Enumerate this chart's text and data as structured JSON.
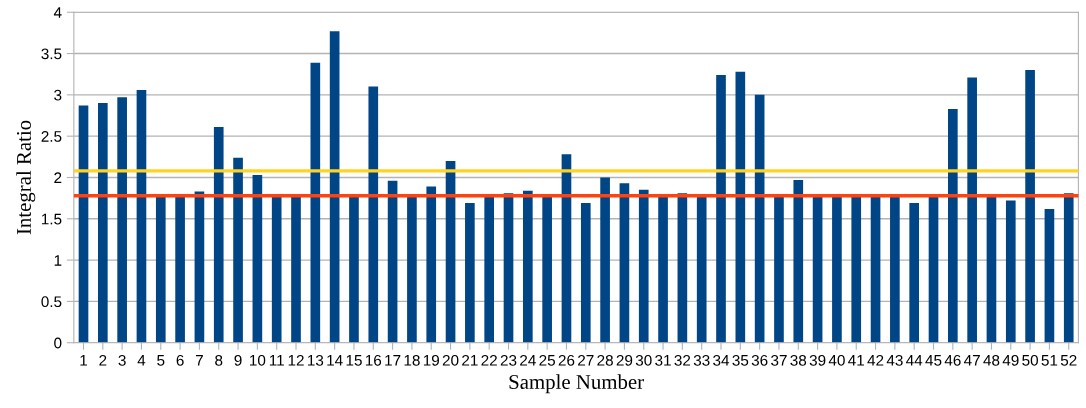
{
  "chart_data": {
    "type": "bar",
    "xlabel": "Sample Number",
    "ylabel": "Integral Ratio",
    "categories": [
      "1",
      "2",
      "3",
      "4",
      "5",
      "6",
      "7",
      "8",
      "9",
      "10",
      "11",
      "12",
      "13",
      "14",
      "15",
      "16",
      "17",
      "18",
      "19",
      "20",
      "21",
      "22",
      "23",
      "24",
      "25",
      "26",
      "27",
      "28",
      "29",
      "30",
      "31",
      "32",
      "33",
      "34",
      "35",
      "36",
      "37",
      "38",
      "39",
      "40",
      "41",
      "42",
      "43",
      "44",
      "45",
      "46",
      "47",
      "48",
      "49",
      "50",
      "51",
      "52"
    ],
    "values": [
      2.87,
      2.9,
      2.97,
      3.06,
      1.77,
      1.77,
      1.83,
      2.61,
      2.24,
      2.03,
      1.77,
      1.77,
      3.39,
      3.77,
      1.77,
      3.1,
      1.96,
      1.77,
      1.89,
      2.2,
      1.69,
      1.77,
      1.81,
      1.84,
      1.77,
      2.28,
      1.69,
      2.0,
      1.93,
      1.85,
      1.77,
      1.81,
      1.77,
      3.24,
      3.28,
      3.0,
      1.77,
      1.97,
      1.77,
      1.77,
      1.77,
      1.77,
      1.77,
      1.69,
      1.77,
      2.83,
      3.21,
      1.77,
      1.72,
      3.3,
      1.62,
      1.81
    ],
    "color": "#004586",
    "ylim": [
      0,
      4
    ],
    "yticks": [
      0,
      0.5,
      1,
      1.5,
      2,
      2.5,
      3,
      3.5,
      4
    ],
    "grid": "y",
    "ref_lines": [
      {
        "axis": "y",
        "value": 2.08,
        "color": "#ffd320"
      },
      {
        "axis": "y",
        "value": 1.78,
        "color": "#ff420e"
      }
    ]
  }
}
